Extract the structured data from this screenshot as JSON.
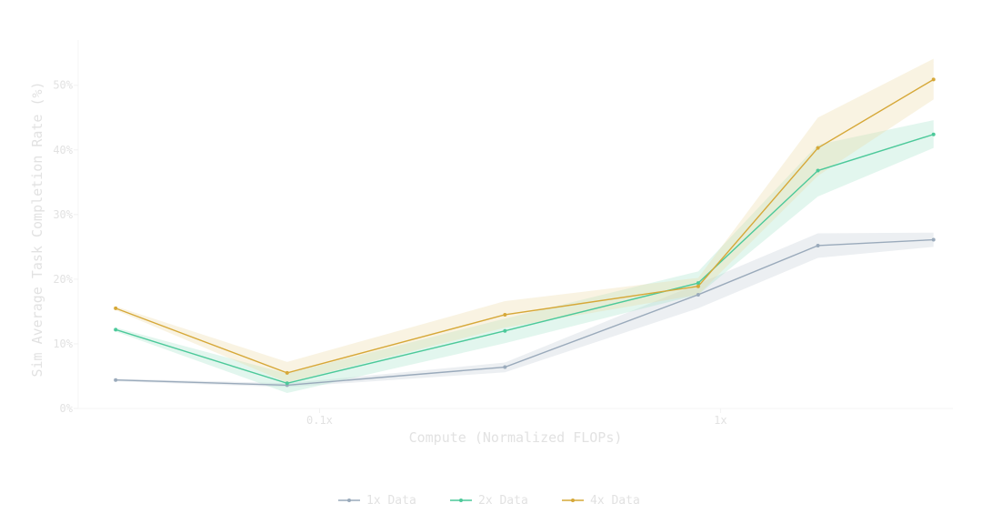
{
  "chart_data": {
    "type": "line",
    "xlabel": "Compute (Normalized FLOPs)",
    "ylabel": "Sim Average Task Completion Rate (%)",
    "x_scale": "log",
    "x_ticks": [
      {
        "value": 0.1,
        "label": "0.1x"
      },
      {
        "value": 1,
        "label": "1x"
      }
    ],
    "y_ticks": [
      {
        "value": 0,
        "label": "0%"
      },
      {
        "value": 10,
        "label": "10%"
      },
      {
        "value": 20,
        "label": "20%"
      },
      {
        "value": 30,
        "label": "30%"
      },
      {
        "value": 40,
        "label": "40%"
      },
      {
        "value": 50,
        "label": "50%"
      }
    ],
    "xlim": [
      0.025,
      3.8
    ],
    "ylim": [
      0,
      57
    ],
    "grid": false,
    "legend_position": "bottom-center",
    "x": [
      0.031,
      0.083,
      0.29,
      0.88,
      1.75,
      3.4
    ],
    "series": [
      {
        "name": "1x Data",
        "color": "#9aaabb",
        "fill": "#c5cdd8",
        "values": [
          4.4,
          3.6,
          6.4,
          17.6,
          25.2,
          26.1
        ],
        "lower": [
          4.2,
          3.3,
          5.6,
          15.5,
          23.3,
          25.0
        ],
        "upper": [
          4.6,
          3.9,
          7.1,
          19.3,
          27.1,
          27.2
        ]
      },
      {
        "name": "2x Data",
        "color": "#4cc99a",
        "fill": "#a5e3cb",
        "values": [
          12.2,
          3.9,
          12.0,
          19.4,
          36.8,
          42.4
        ],
        "lower": [
          11.9,
          2.4,
          10.1,
          17.6,
          32.8,
          40.3
        ],
        "upper": [
          12.5,
          5.4,
          13.9,
          21.2,
          40.8,
          44.6
        ]
      },
      {
        "name": "4x Data",
        "color": "#d6a838",
        "fill": "#ecd9a4",
        "values": [
          15.5,
          5.5,
          14.5,
          18.9,
          40.3,
          50.9
        ],
        "lower": [
          15.2,
          4.0,
          12.5,
          17.6,
          36.0,
          47.8
        ],
        "upper": [
          15.8,
          7.2,
          16.6,
          20.2,
          45.0,
          54.1
        ]
      }
    ]
  }
}
